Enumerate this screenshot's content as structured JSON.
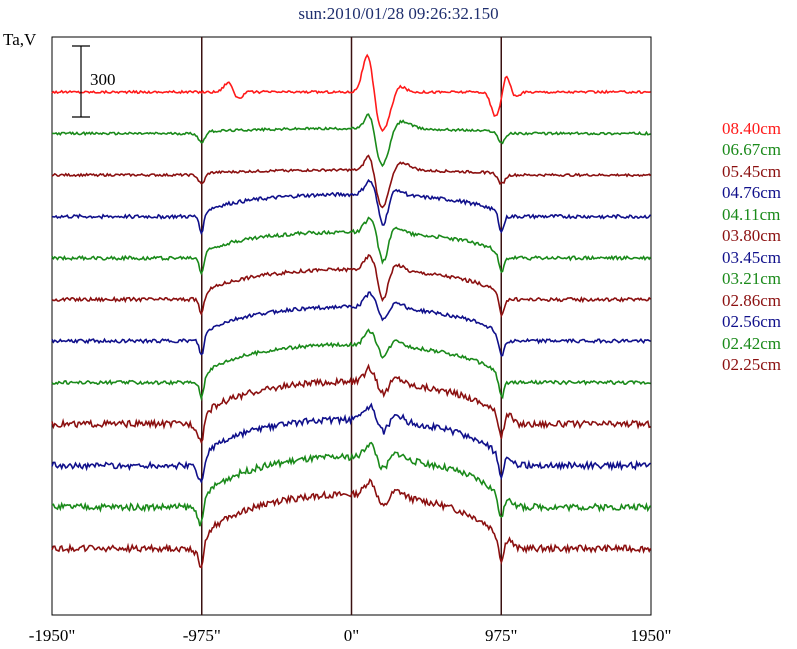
{
  "chart_data": {
    "type": "line",
    "title": "sun:2010/01/28 09:26:32.150",
    "ylabel": "Ta,V",
    "xlabel": "",
    "xlim": [
      -1950,
      1950
    ],
    "x_ticks": [
      {
        "value": -1950,
        "label": "-1950\""
      },
      {
        "value": -975,
        "label": "-975\""
      },
      {
        "value": 0,
        "label": "0\""
      },
      {
        "value": 975,
        "label": "975\""
      },
      {
        "value": 1950,
        "label": "1950\""
      }
    ],
    "vertical_lines": [
      -975,
      0,
      975
    ],
    "scale_bar": {
      "label": "300",
      "value": 300
    },
    "grid": false,
    "legend_position": "right",
    "series": [
      {
        "name": "08.40cm",
        "color": "#ff1a1a",
        "kind": "quiet"
      },
      {
        "name": "06.67cm",
        "color": "#1a8a1a",
        "kind": "transition"
      },
      {
        "name": "05.45cm",
        "color": "#8b1010",
        "kind": "transition"
      },
      {
        "name": "04.76cm",
        "color": "#10108b",
        "kind": "disk"
      },
      {
        "name": "04.11cm",
        "color": "#1a8a1a",
        "kind": "disk"
      },
      {
        "name": "03.80cm",
        "color": "#8b1010",
        "kind": "disk"
      },
      {
        "name": "03.45cm",
        "color": "#10108b",
        "kind": "disk"
      },
      {
        "name": "03.21cm",
        "color": "#1a8a1a",
        "kind": "disk"
      },
      {
        "name": "02.86cm",
        "color": "#8b1010",
        "kind": "disk"
      },
      {
        "name": "02.56cm",
        "color": "#10108b",
        "kind": "disk"
      },
      {
        "name": "02.42cm",
        "color": "#1a8a1a",
        "kind": "disk"
      },
      {
        "name": "02.25cm",
        "color": "#8b1010",
        "kind": "disk"
      }
    ]
  }
}
